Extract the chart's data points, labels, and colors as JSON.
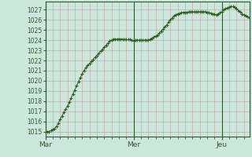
{
  "background_color": "#cce8dc",
  "plot_bg_color": "#cce8dc",
  "line_color": "#2d5a1e",
  "marker_color": "#2d5a1e",
  "ylim": [
    1014.5,
    1027.8
  ],
  "yticks": [
    1015,
    1016,
    1017,
    1018,
    1019,
    1020,
    1021,
    1022,
    1023,
    1024,
    1025,
    1026,
    1027
  ],
  "xtick_labels": [
    "Mar",
    "Mer",
    "Jeu"
  ],
  "xtick_positions": [
    0,
    48,
    96
  ],
  "ylabel_fontsize": 5.5,
  "xtick_fontsize": 6.5,
  "major_grid_color": "#aaaaaa",
  "minor_grid_color_x": "#cc9999",
  "minor_grid_color_y": "#aaaacc",
  "day_line_color": "#335533",
  "pressure_values": [
    1015.0,
    1015.0,
    1015.0,
    1015.1,
    1015.2,
    1015.3,
    1015.5,
    1015.8,
    1016.2,
    1016.5,
    1016.9,
    1017.2,
    1017.5,
    1017.9,
    1018.3,
    1018.7,
    1019.1,
    1019.5,
    1019.9,
    1020.3,
    1020.7,
    1021.0,
    1021.3,
    1021.5,
    1021.7,
    1021.9,
    1022.1,
    1022.3,
    1022.5,
    1022.7,
    1022.9,
    1023.1,
    1023.3,
    1023.5,
    1023.7,
    1023.9,
    1024.0,
    1024.1,
    1024.1,
    1024.1,
    1024.1,
    1024.1,
    1024.1,
    1024.05,
    1024.05,
    1024.05,
    1024.05,
    1024.0,
    1023.95,
    1024.0,
    1024.0,
    1024.0,
    1024.0,
    1024.0,
    1024.0,
    1024.0,
    1024.0,
    1024.1,
    1024.2,
    1024.3,
    1024.4,
    1024.5,
    1024.7,
    1024.9,
    1025.1,
    1025.3,
    1025.5,
    1025.8,
    1026.0,
    1026.2,
    1026.4,
    1026.5,
    1026.6,
    1026.65,
    1026.7,
    1026.75,
    1026.75,
    1026.75,
    1026.8,
    1026.8,
    1026.8,
    1026.8,
    1026.8,
    1026.8,
    1026.8,
    1026.8,
    1026.8,
    1026.8,
    1026.75,
    1026.7,
    1026.65,
    1026.6,
    1026.55,
    1026.5,
    1026.6,
    1026.7,
    1026.8,
    1027.0,
    1027.1,
    1027.2,
    1027.25,
    1027.3,
    1027.3,
    1027.25,
    1027.1,
    1026.9,
    1026.8,
    1026.6,
    1026.5,
    1026.4,
    1026.3,
    1026.2
  ]
}
